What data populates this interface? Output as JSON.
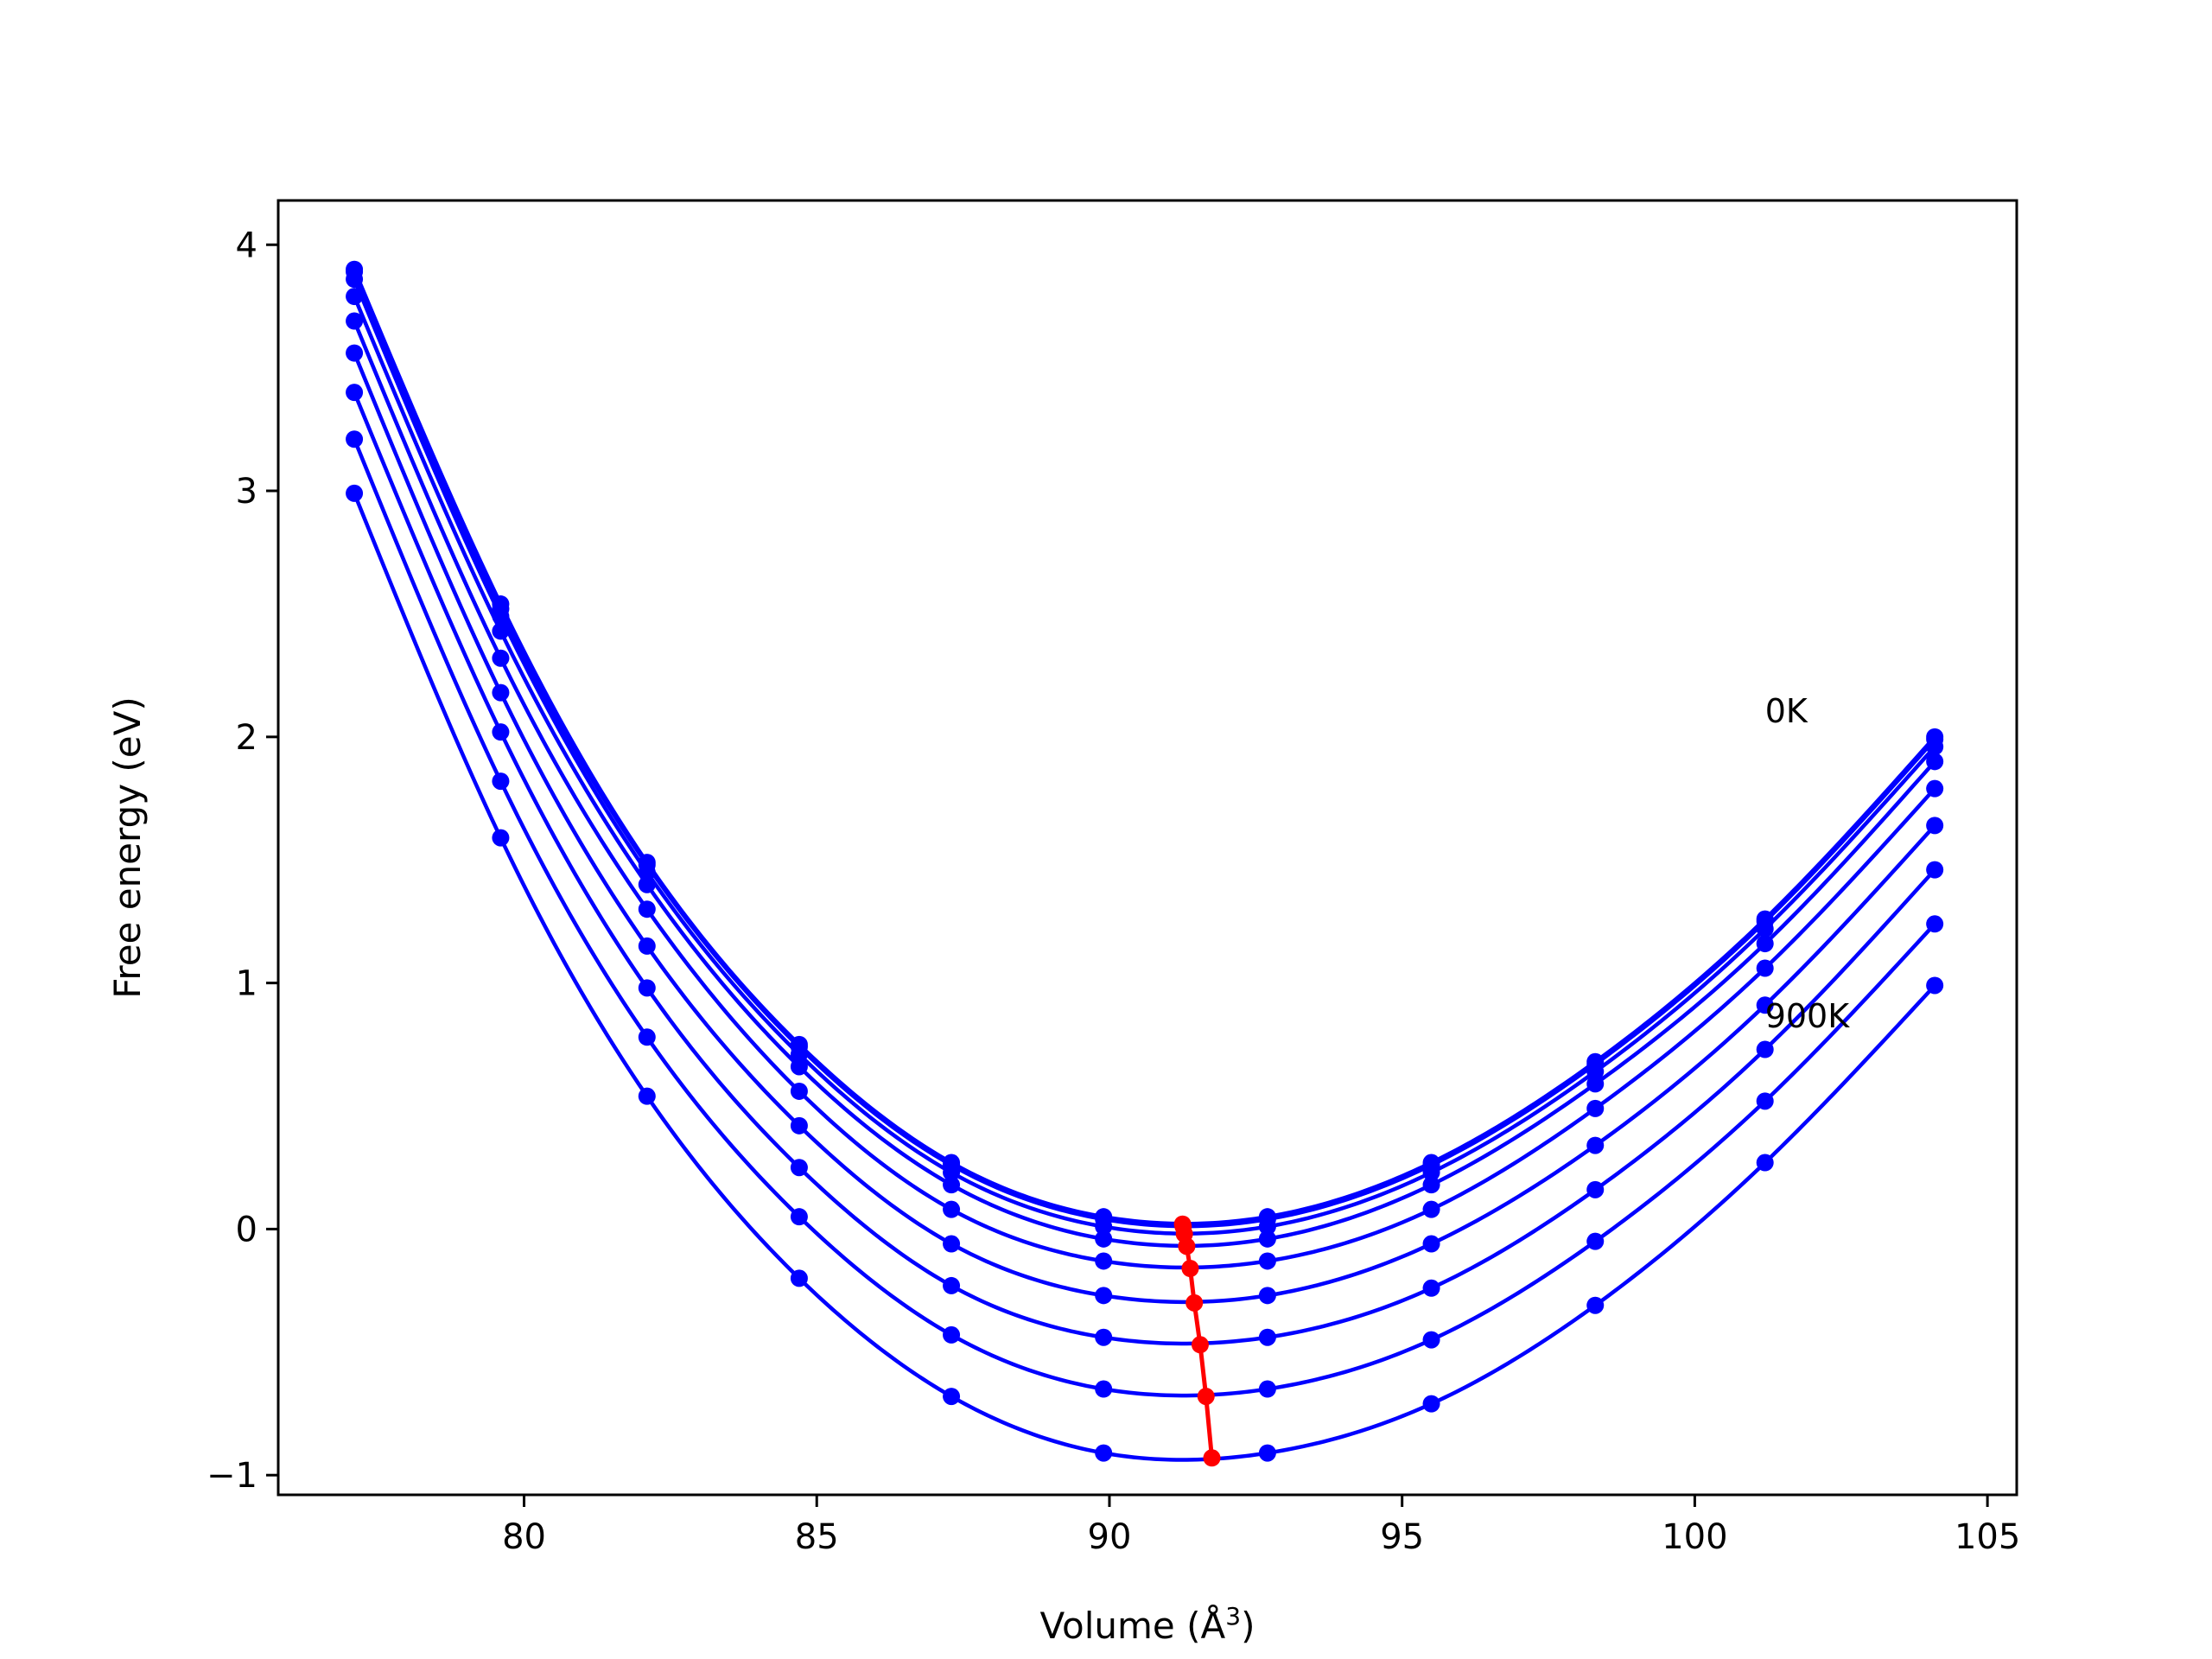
{
  "chart_data": {
    "type": "line",
    "xlabel": "Volume (Å",
    "xlabel_sup": "3",
    "xlabel_close": ")",
    "ylabel": "Free energy (eV)",
    "xlim": [
      75.8,
      105.5
    ],
    "ylim": [
      -1.08,
      4.18
    ],
    "xticks": [
      80,
      85,
      90,
      95,
      100,
      105
    ],
    "yticks": [
      -1,
      0,
      1,
      2,
      3,
      4
    ],
    "ytick_labels": [
      "−1",
      "0",
      "1",
      "2",
      "3",
      "4"
    ],
    "grid": false,
    "legend": "none",
    "x": [
      77.1,
      79.6,
      82.1,
      84.7,
      87.3,
      89.9,
      92.7,
      95.5,
      98.3,
      101.2,
      104.1
    ],
    "series": [
      {
        "values": [
          3.9,
          2.54,
          1.49,
          0.75,
          0.27,
          0.05,
          0.05,
          0.27,
          0.68,
          1.26,
          2.0
        ]
      },
      {
        "values": [
          3.89,
          2.52,
          1.48,
          0.74,
          0.26,
          0.04,
          0.04,
          0.26,
          0.67,
          1.25,
          1.99
        ]
      },
      {
        "values": [
          3.86,
          2.49,
          1.45,
          0.71,
          0.23,
          0.01,
          0.01,
          0.23,
          0.64,
          1.22,
          1.96
        ]
      },
      {
        "values": [
          3.79,
          2.43,
          1.4,
          0.66,
          0.18,
          -0.04,
          -0.04,
          0.18,
          0.59,
          1.16,
          1.9
        ]
      },
      {
        "values": [
          3.69,
          2.32,
          1.3,
          0.56,
          0.08,
          -0.13,
          -0.13,
          0.08,
          0.49,
          1.06,
          1.79
        ]
      },
      {
        "values": [
          3.56,
          2.18,
          1.15,
          0.42,
          -0.06,
          -0.27,
          -0.27,
          -0.06,
          0.34,
          0.91,
          1.64
        ]
      },
      {
        "values": [
          3.4,
          2.02,
          0.98,
          0.25,
          -0.23,
          -0.44,
          -0.44,
          -0.24,
          0.16,
          0.73,
          1.46
        ]
      },
      {
        "values": [
          3.21,
          1.82,
          0.78,
          0.05,
          -0.43,
          -0.65,
          -0.65,
          -0.45,
          -0.05,
          0.52,
          1.24
        ]
      },
      {
        "values": [
          2.99,
          1.59,
          0.54,
          -0.2,
          -0.68,
          -0.91,
          -0.91,
          -0.71,
          -0.31,
          0.27,
          0.99
        ]
      }
    ],
    "min_points": {
      "x": [
        91.25,
        91.26,
        91.28,
        91.32,
        91.38,
        91.45,
        91.55,
        91.65,
        91.75
      ],
      "y": [
        0.02,
        0.01,
        -0.02,
        -0.07,
        -0.16,
        -0.3,
        -0.47,
        -0.68,
        -0.93
      ]
    },
    "series_color": "#0000ff",
    "min_color": "#ff0000",
    "annotations": [
      {
        "text": "0K",
        "x": 101.2,
        "y": 2.06
      },
      {
        "text": "900K",
        "x": 101.2,
        "y": 0.82
      }
    ]
  }
}
